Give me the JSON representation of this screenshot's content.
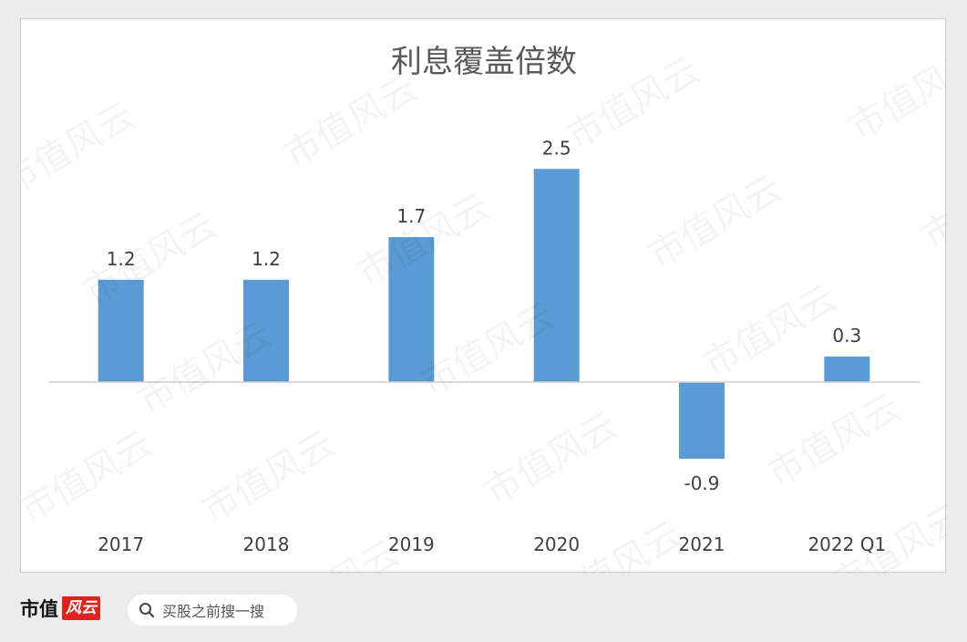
{
  "chart_data": {
    "type": "bar",
    "title": "利息覆盖倍数",
    "categories": [
      "2017",
      "2018",
      "2019",
      "2020",
      "2021",
      "2022 Q1"
    ],
    "values": [
      1.2,
      1.2,
      1.7,
      2.5,
      -0.9,
      0.3
    ],
    "data_labels": [
      "1.2",
      "1.2",
      "1.7",
      "2.5",
      "-0.9",
      "0.3"
    ],
    "xlabel": "",
    "ylabel": "",
    "ylim": [
      -1.3,
      3.0
    ],
    "grid": false,
    "legend": "none",
    "bar_color": "#5b9bd5"
  },
  "footer": {
    "logo_text": "市值",
    "logo_mark": "风云",
    "search_placeholder": "买股之前搜一搜",
    "search_icon": "search-icon"
  },
  "watermark_text": "市值风云"
}
